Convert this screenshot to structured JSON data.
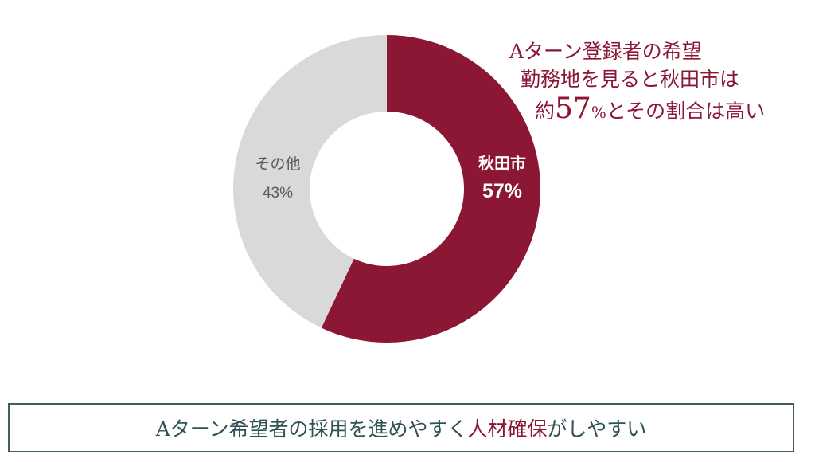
{
  "chart_data": {
    "type": "pie",
    "categories": [
      "秋田市",
      "その他"
    ],
    "values": [
      57,
      43
    ],
    "data_labels": [
      "57%",
      "43%"
    ],
    "colors": [
      "#8b1734",
      "#d9d9d9"
    ],
    "label_colors": [
      "#ffffff",
      "#595959"
    ]
  },
  "headline": {
    "line1": "Aターン登録者の希望",
    "line2": "勤務地を見ると秋田市は",
    "line3_prefix": "約",
    "line3_number": "57",
    "line3_unit": "%",
    "line3_suffix": "とその割合は高い"
  },
  "footer": {
    "part1": "Aターン希望者の採用を進めやすく",
    "part2": "人材確保",
    "part3": "がしやすい"
  }
}
